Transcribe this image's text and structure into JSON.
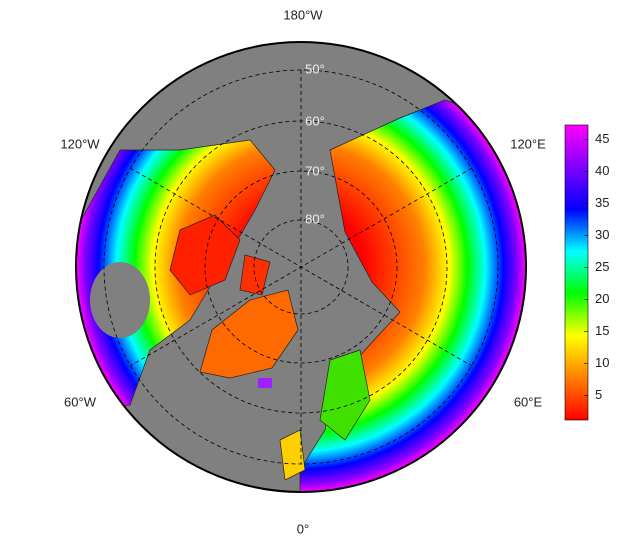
{
  "map": {
    "longitude_labels": [
      "180°W",
      "120°W",
      "120°E",
      "60°W",
      "60°E",
      "0°"
    ],
    "latitude_labels": [
      "50°",
      "60°",
      "70°",
      "80°"
    ]
  },
  "colorbar": {
    "range": [
      1.2,
      47.3
    ],
    "ticks": [
      5,
      10,
      15,
      20,
      25,
      30,
      35,
      40,
      45
    ],
    "colors": [
      "#ff0000",
      "#ff8000",
      "#ffff00",
      "#00ff00",
      "#00ffff",
      "#0000ff",
      "#8000ff",
      "#ff00ff"
    ]
  }
}
